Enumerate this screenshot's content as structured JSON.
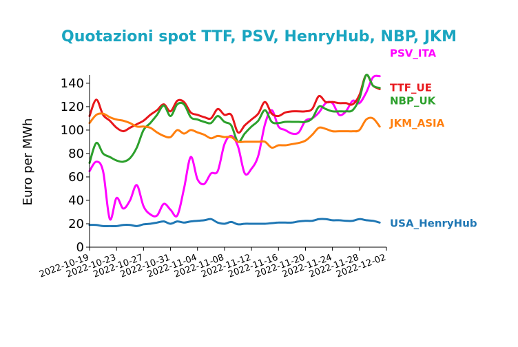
{
  "chart_data": {
    "type": "line",
    "title": "Quotazioni spot TTF, PSV, HenryHub, NBP, JKM",
    "title_color": "#1aa5c0",
    "xlabel": "",
    "ylabel": "Euro per MWh",
    "ylim": [
      0,
      147
    ],
    "xlim": [
      "2022-10-19",
      "2022-12-02"
    ],
    "yticks": [
      0,
      20,
      40,
      60,
      80,
      100,
      120,
      140
    ],
    "xticks": [
      "2022-10-19",
      "2022-10-23",
      "2022-10-27",
      "2022-10-31",
      "2022-11-04",
      "2022-11-08",
      "2022-11-12",
      "2022-11-16",
      "2022-11-20",
      "2022-11-24",
      "2022-11-28",
      "2022-12-02"
    ],
    "grid": false,
    "legend": "right (inline labels)",
    "series": [
      {
        "name": "PSV_ITA",
        "color": "#ff00ff",
        "points": [
          [
            "2022-10-19",
            65
          ],
          [
            "2022-10-20",
            73
          ],
          [
            "2022-10-21",
            65
          ],
          [
            "2022-10-22",
            24
          ],
          [
            "2022-10-23",
            42
          ],
          [
            "2022-10-24",
            33
          ],
          [
            "2022-10-25",
            40
          ],
          [
            "2022-10-26",
            53
          ],
          [
            "2022-10-27",
            35
          ],
          [
            "2022-10-28",
            28
          ],
          [
            "2022-10-29",
            27
          ],
          [
            "2022-10-30",
            37
          ],
          [
            "2022-10-31",
            32
          ],
          [
            "2022-11-01",
            27
          ],
          [
            "2022-11-02",
            50
          ],
          [
            "2022-11-03",
            77
          ],
          [
            "2022-11-04",
            58
          ],
          [
            "2022-11-05",
            54
          ],
          [
            "2022-11-06",
            63
          ],
          [
            "2022-11-07",
            65
          ],
          [
            "2022-11-08",
            88
          ],
          [
            "2022-11-09",
            95
          ],
          [
            "2022-11-10",
            86
          ],
          [
            "2022-11-11",
            63
          ],
          [
            "2022-11-12",
            67
          ],
          [
            "2022-11-13",
            78
          ],
          [
            "2022-11-14",
            105
          ],
          [
            "2022-11-15",
            117
          ],
          [
            "2022-11-16",
            103
          ],
          [
            "2022-11-17",
            100
          ],
          [
            "2022-11-18",
            97
          ],
          [
            "2022-11-19",
            98
          ],
          [
            "2022-11-20",
            108
          ],
          [
            "2022-11-21",
            110
          ],
          [
            "2022-11-22",
            115
          ],
          [
            "2022-11-23",
            123
          ],
          [
            "2022-11-24",
            123
          ],
          [
            "2022-11-25",
            113
          ],
          [
            "2022-11-26",
            116
          ],
          [
            "2022-11-27",
            125
          ],
          [
            "2022-11-28",
            123
          ],
          [
            "2022-11-29",
            132
          ],
          [
            "2022-11-30",
            145
          ],
          [
            "2022-12-01",
            146
          ]
        ]
      },
      {
        "name": "TTF_UE",
        "color": "#e8171c",
        "points": [
          [
            "2022-10-19",
            112
          ],
          [
            "2022-10-20",
            126
          ],
          [
            "2022-10-21",
            113
          ],
          [
            "2022-10-22",
            108
          ],
          [
            "2022-10-23",
            102
          ],
          [
            "2022-10-24",
            99
          ],
          [
            "2022-10-25",
            102
          ],
          [
            "2022-10-26",
            105
          ],
          [
            "2022-10-27",
            108
          ],
          [
            "2022-10-28",
            113
          ],
          [
            "2022-10-29",
            117
          ],
          [
            "2022-10-30",
            122
          ],
          [
            "2022-10-31",
            116
          ],
          [
            "2022-11-01",
            125
          ],
          [
            "2022-11-02",
            124
          ],
          [
            "2022-11-03",
            115
          ],
          [
            "2022-11-04",
            113
          ],
          [
            "2022-11-05",
            111
          ],
          [
            "2022-11-06",
            110
          ],
          [
            "2022-11-07",
            118
          ],
          [
            "2022-11-08",
            113
          ],
          [
            "2022-11-09",
            113
          ],
          [
            "2022-11-10",
            98
          ],
          [
            "2022-11-11",
            104
          ],
          [
            "2022-11-12",
            109
          ],
          [
            "2022-11-13",
            114
          ],
          [
            "2022-11-14",
            124
          ],
          [
            "2022-11-15",
            114
          ],
          [
            "2022-11-16",
            112
          ],
          [
            "2022-11-17",
            115
          ],
          [
            "2022-11-18",
            116
          ],
          [
            "2022-11-19",
            116
          ],
          [
            "2022-11-20",
            116
          ],
          [
            "2022-11-21",
            118
          ],
          [
            "2022-11-22",
            129
          ],
          [
            "2022-11-23",
            124
          ],
          [
            "2022-11-24",
            124
          ],
          [
            "2022-11-25",
            123
          ],
          [
            "2022-11-26",
            123
          ],
          [
            "2022-11-27",
            122
          ],
          [
            "2022-11-28",
            130
          ],
          [
            "2022-11-29",
            147
          ],
          [
            "2022-11-30",
            138
          ],
          [
            "2022-12-01",
            135
          ]
        ]
      },
      {
        "name": "NBP_UK",
        "color": "#2ca02c",
        "points": [
          [
            "2022-10-19",
            72
          ],
          [
            "2022-10-20",
            89
          ],
          [
            "2022-10-21",
            80
          ],
          [
            "2022-10-22",
            77
          ],
          [
            "2022-10-23",
            74
          ],
          [
            "2022-10-24",
            73
          ],
          [
            "2022-10-25",
            76
          ],
          [
            "2022-10-26",
            85
          ],
          [
            "2022-10-27",
            100
          ],
          [
            "2022-10-28",
            106
          ],
          [
            "2022-10-29",
            113
          ],
          [
            "2022-10-30",
            121
          ],
          [
            "2022-10-31",
            112
          ],
          [
            "2022-11-01",
            122
          ],
          [
            "2022-11-02",
            122
          ],
          [
            "2022-11-03",
            111
          ],
          [
            "2022-11-04",
            109
          ],
          [
            "2022-11-05",
            107
          ],
          [
            "2022-11-06",
            106
          ],
          [
            "2022-11-07",
            112
          ],
          [
            "2022-11-08",
            107
          ],
          [
            "2022-11-09",
            104
          ],
          [
            "2022-11-10",
            90
          ],
          [
            "2022-11-11",
            97
          ],
          [
            "2022-11-12",
            103
          ],
          [
            "2022-11-13",
            108
          ],
          [
            "2022-11-14",
            117
          ],
          [
            "2022-11-15",
            107
          ],
          [
            "2022-11-16",
            106
          ],
          [
            "2022-11-17",
            107
          ],
          [
            "2022-11-18",
            107
          ],
          [
            "2022-11-19",
            107
          ],
          [
            "2022-11-20",
            107
          ],
          [
            "2022-11-21",
            110
          ],
          [
            "2022-11-22",
            120
          ],
          [
            "2022-11-23",
            118
          ],
          [
            "2022-11-24",
            116
          ],
          [
            "2022-11-25",
            116
          ],
          [
            "2022-11-26",
            116
          ],
          [
            "2022-11-27",
            117
          ],
          [
            "2022-11-28",
            127
          ],
          [
            "2022-11-29",
            147
          ],
          [
            "2022-11-30",
            138
          ],
          [
            "2022-12-01",
            136
          ]
        ]
      },
      {
        "name": "JKM_ASIA",
        "color": "#ff7f0e",
        "points": [
          [
            "2022-10-19",
            106
          ],
          [
            "2022-10-20",
            113
          ],
          [
            "2022-10-21",
            114
          ],
          [
            "2022-10-22",
            111
          ],
          [
            "2022-10-23",
            109
          ],
          [
            "2022-10-24",
            108
          ],
          [
            "2022-10-25",
            106
          ],
          [
            "2022-10-26",
            103
          ],
          [
            "2022-10-27",
            103
          ],
          [
            "2022-10-28",
            102
          ],
          [
            "2022-10-29",
            98
          ],
          [
            "2022-10-30",
            95
          ],
          [
            "2022-10-31",
            94
          ],
          [
            "2022-11-01",
            100
          ],
          [
            "2022-11-02",
            97
          ],
          [
            "2022-11-03",
            100
          ],
          [
            "2022-11-04",
            98
          ],
          [
            "2022-11-05",
            96
          ],
          [
            "2022-11-06",
            93
          ],
          [
            "2022-11-07",
            95
          ],
          [
            "2022-11-08",
            94
          ],
          [
            "2022-11-09",
            94
          ],
          [
            "2022-11-10",
            90
          ],
          [
            "2022-11-11",
            90
          ],
          [
            "2022-11-12",
            90
          ],
          [
            "2022-11-13",
            90
          ],
          [
            "2022-11-14",
            90
          ],
          [
            "2022-11-15",
            85
          ],
          [
            "2022-11-16",
            87
          ],
          [
            "2022-11-17",
            87
          ],
          [
            "2022-11-18",
            88
          ],
          [
            "2022-11-19",
            89
          ],
          [
            "2022-11-20",
            91
          ],
          [
            "2022-11-21",
            96
          ],
          [
            "2022-11-22",
            102
          ],
          [
            "2022-11-23",
            101
          ],
          [
            "2022-11-24",
            99
          ],
          [
            "2022-11-25",
            99
          ],
          [
            "2022-11-26",
            99
          ],
          [
            "2022-11-27",
            99
          ],
          [
            "2022-11-28",
            100
          ],
          [
            "2022-11-29",
            109
          ],
          [
            "2022-11-30",
            110
          ],
          [
            "2022-12-01",
            103
          ]
        ]
      },
      {
        "name": "USA_HenryHub",
        "color": "#1f77b4",
        "points": [
          [
            "2022-10-19",
            19
          ],
          [
            "2022-10-20",
            19
          ],
          [
            "2022-10-21",
            18
          ],
          [
            "2022-10-22",
            18
          ],
          [
            "2022-10-23",
            18
          ],
          [
            "2022-10-24",
            19
          ],
          [
            "2022-10-25",
            19
          ],
          [
            "2022-10-26",
            18
          ],
          [
            "2022-10-27",
            19.5
          ],
          [
            "2022-10-28",
            20
          ],
          [
            "2022-10-29",
            21
          ],
          [
            "2022-10-30",
            22
          ],
          [
            "2022-10-31",
            20
          ],
          [
            "2022-11-01",
            22
          ],
          [
            "2022-11-02",
            21
          ],
          [
            "2022-11-03",
            22
          ],
          [
            "2022-11-04",
            22.5
          ],
          [
            "2022-11-05",
            23
          ],
          [
            "2022-11-06",
            24
          ],
          [
            "2022-11-07",
            21
          ],
          [
            "2022-11-08",
            20
          ],
          [
            "2022-11-09",
            21.5
          ],
          [
            "2022-11-10",
            19.5
          ],
          [
            "2022-11-11",
            20
          ],
          [
            "2022-11-12",
            20
          ],
          [
            "2022-11-13",
            20
          ],
          [
            "2022-11-14",
            20
          ],
          [
            "2022-11-15",
            20.5
          ],
          [
            "2022-11-16",
            21
          ],
          [
            "2022-11-17",
            21
          ],
          [
            "2022-11-18",
            21
          ],
          [
            "2022-11-19",
            22
          ],
          [
            "2022-11-20",
            22.5
          ],
          [
            "2022-11-21",
            22.5
          ],
          [
            "2022-11-22",
            24
          ],
          [
            "2022-11-23",
            24
          ],
          [
            "2022-11-24",
            23
          ],
          [
            "2022-11-25",
            23
          ],
          [
            "2022-11-26",
            22.5
          ],
          [
            "2022-11-27",
            22.5
          ],
          [
            "2022-11-28",
            24
          ],
          [
            "2022-11-29",
            23
          ],
          [
            "2022-11-30",
            22.5
          ],
          [
            "2022-12-01",
            21
          ]
        ]
      }
    ]
  }
}
